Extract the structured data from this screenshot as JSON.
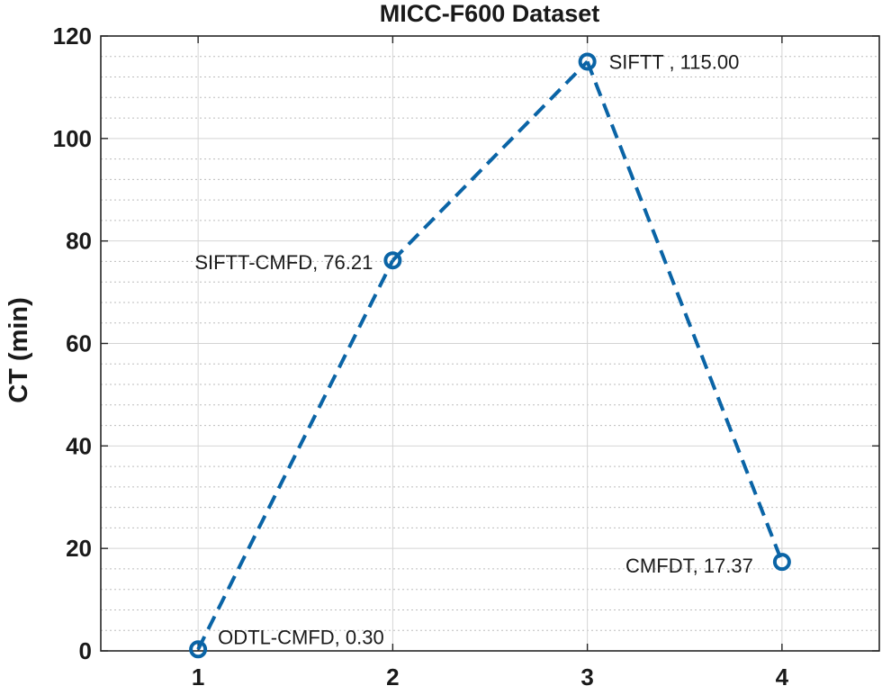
{
  "chart_data": {
    "type": "line",
    "title": "MICC-F600 Dataset",
    "xlabel": "",
    "ylabel": "CT (min)",
    "x": [
      1,
      2,
      3,
      4
    ],
    "series": [
      {
        "values": [
          0.3,
          76.21,
          115.0,
          17.37
        ]
      }
    ],
    "annotations": [
      "ODTL-CMFD, 0.30",
      "SIFTT-CMFD, 76.21",
      "SIFTT , 115.00",
      "CMFDT, 17.37"
    ],
    "xlim": [
      0.5,
      4.5
    ],
    "ylim": [
      0,
      120
    ],
    "xticks": [
      "1",
      "2",
      "3",
      "4"
    ],
    "yticks": [
      "0",
      "20",
      "40",
      "60",
      "80",
      "100",
      "120"
    ],
    "grid": true,
    "minor_grid": true,
    "line_style": "dashed",
    "marker": "circle",
    "color": "#0a64a6"
  }
}
